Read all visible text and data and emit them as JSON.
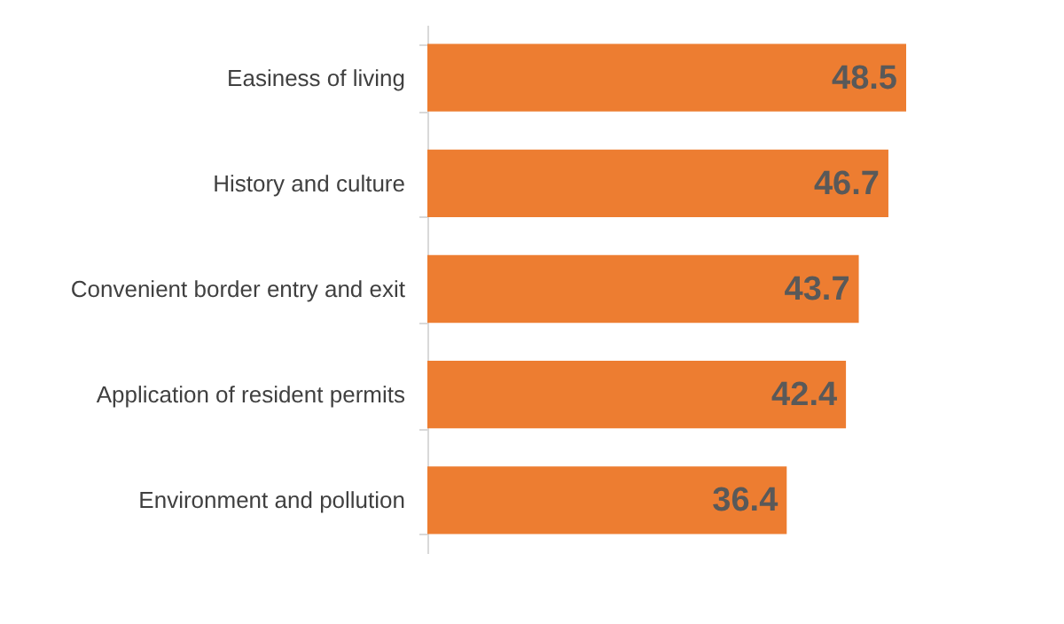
{
  "chart_data": {
    "type": "bar",
    "orientation": "horizontal",
    "categories": [
      "Easiness of living",
      "History and culture",
      "Convenient border entry and exit",
      "Application of resident permits",
      "Environment and pollution"
    ],
    "values": [
      48.5,
      46.7,
      43.7,
      42.4,
      36.4
    ],
    "color": "#ed7d31",
    "data_labels": true
  }
}
